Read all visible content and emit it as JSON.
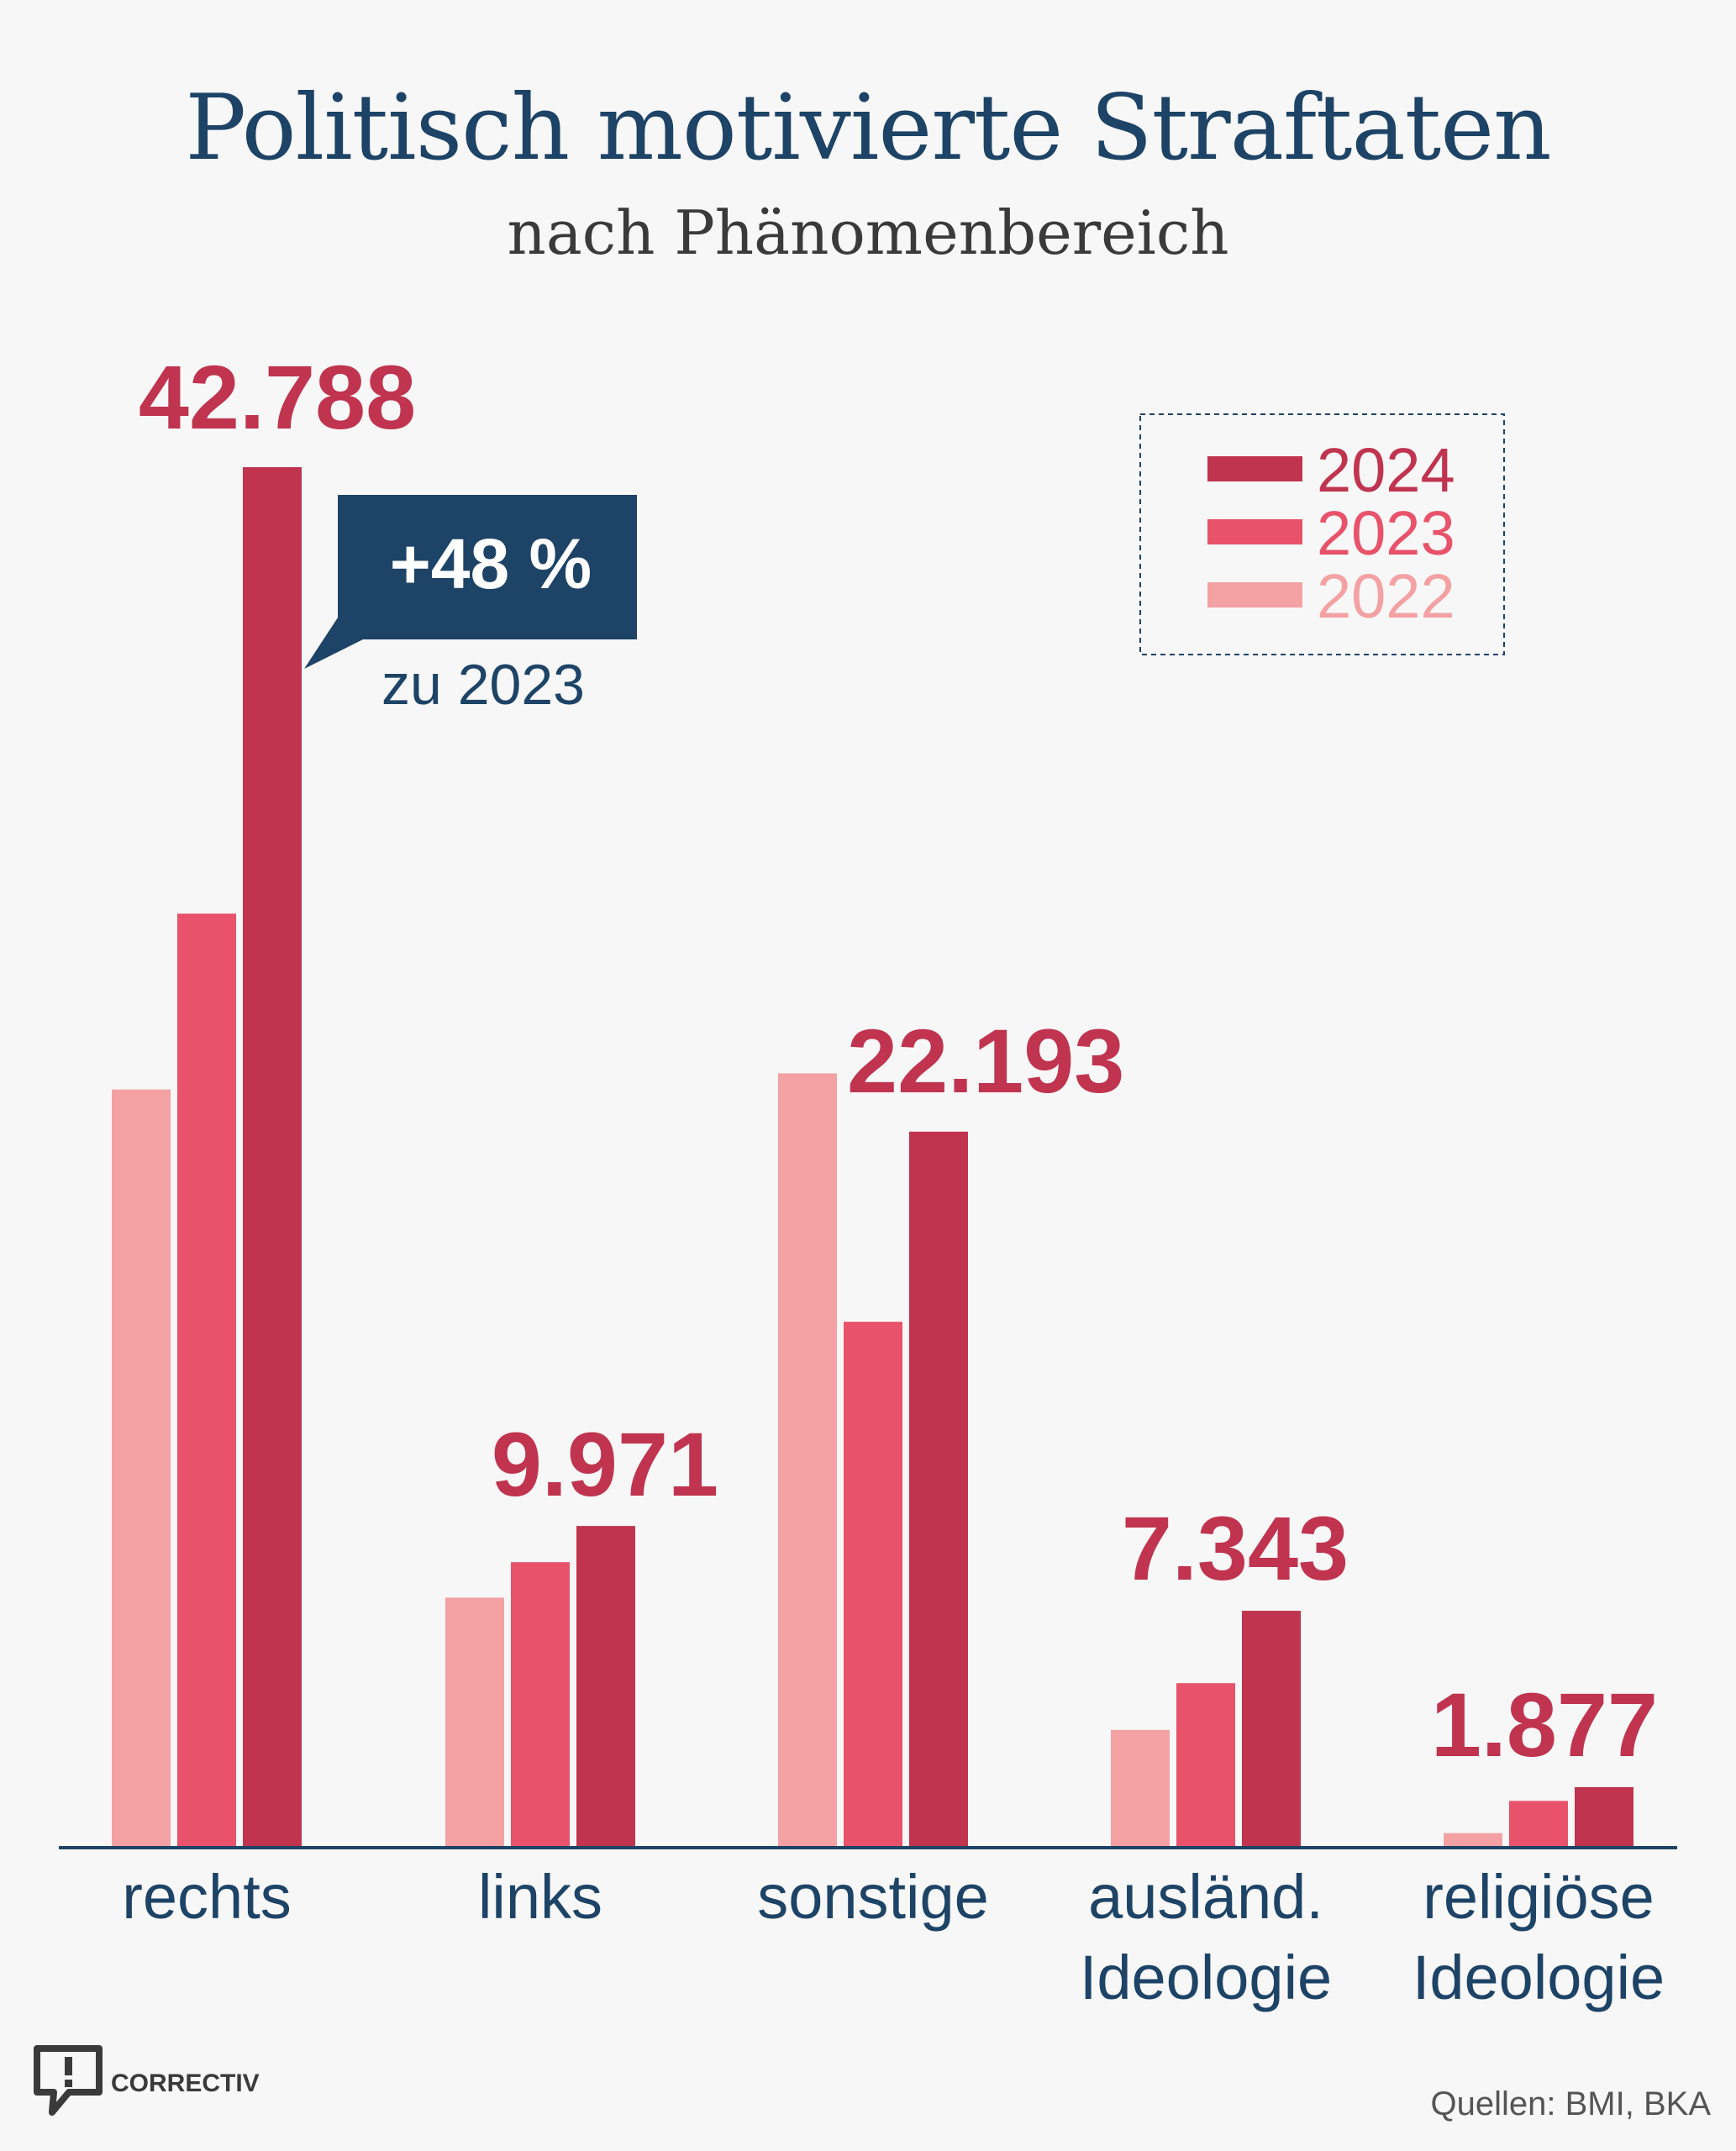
{
  "title": "Politisch motivierte Straftaten",
  "subtitle": "nach Phänomenbereich",
  "callout": {
    "value": "+48 %",
    "note": "zu 2023"
  },
  "logo": {
    "text": "CORRECTIV",
    "icon": "speech-bubble-exclamation-icon"
  },
  "source": "Quellen: BMI, BKA",
  "colors": {
    "2024": "#c0344f",
    "2023": "#e8526a",
    "2022": "#f3a1a3",
    "axis": "#1d4366",
    "title": "#1d4366"
  },
  "chart_data": {
    "type": "bar",
    "categories": [
      [
        "rechts"
      ],
      [
        "links"
      ],
      [
        "sonstige"
      ],
      [
        "ausländ.",
        "Ideologie"
      ],
      [
        "religiöse",
        "Ideologie"
      ]
    ],
    "series": [
      {
        "name": "2022",
        "values": [
          23500,
          7750,
          24000,
          3650,
          450
        ]
      },
      {
        "name": "2023",
        "values": [
          28950,
          8850,
          16300,
          5100,
          1450
        ]
      },
      {
        "name": "2024",
        "values": [
          42788,
          9971,
          22193,
          7343,
          1877
        ]
      }
    ],
    "value_labels": [
      "42.788",
      "9.971",
      "22.193",
      "7.343",
      "1.877"
    ],
    "legend_order": [
      "2024",
      "2023",
      "2022"
    ],
    "legend_position": "top-right",
    "ylim": [
      0,
      42788
    ],
    "grid": false
  }
}
